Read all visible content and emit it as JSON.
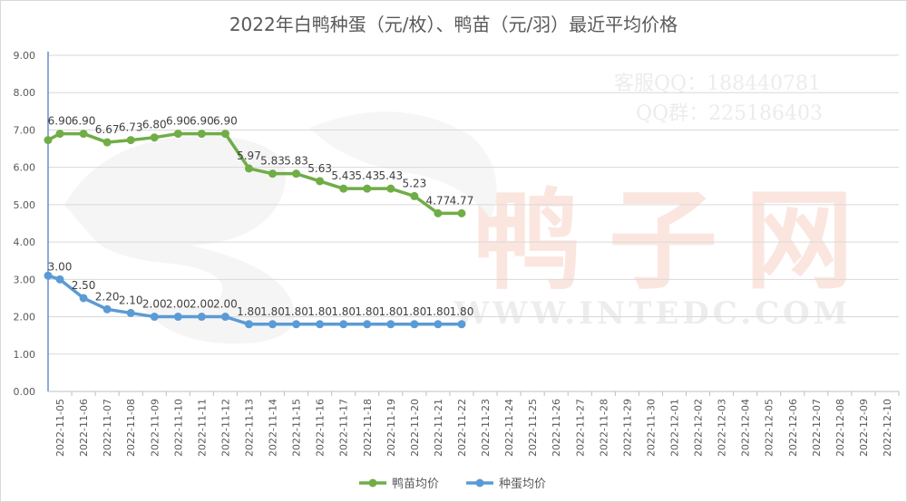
{
  "chart_data": {
    "type": "line",
    "title": "2022年白鸭种蛋（元/枚）、鸭苗（元/羽）最近平均价格",
    "xlabel": "",
    "ylabel": "",
    "ylim": [
      0,
      9
    ],
    "yticks": [
      "0.00",
      "1.00",
      "2.00",
      "3.00",
      "4.00",
      "5.00",
      "6.00",
      "7.00",
      "8.00",
      "9.00"
    ],
    "categories": [
      "2022-11-05",
      "2022-11-06",
      "2022-11-07",
      "2022-11-08",
      "2022-11-09",
      "2022-11-10",
      "2022-11-11",
      "2022-11-12",
      "2022-11-13",
      "2022-11-14",
      "2022-11-15",
      "2022-11-16",
      "2022-11-17",
      "2022-11-18",
      "2022-11-19",
      "2022-11-20",
      "2022-11-21",
      "2022-11-22",
      "2022-11-23",
      "2022-11-24",
      "2022-11-25",
      "2022-11-26",
      "2022-11-27",
      "2022-11-28",
      "2022-11-29",
      "2022-11-30",
      "2022-12-01",
      "2022-12-02",
      "2022-12-03",
      "2022-12-04",
      "2022-12-05",
      "2022-12-06",
      "2022-12-07",
      "2022-12-08",
      "2022-12-09",
      "2022-12-10"
    ],
    "legend_position": "bottom",
    "grid": true,
    "series": [
      {
        "name": "鸭苗均价",
        "color": "#70ad47",
        "x": [
          "2022-11-04",
          "2022-11-05",
          "2022-11-06",
          "2022-11-07",
          "2022-11-08",
          "2022-11-09",
          "2022-11-10",
          "2022-11-11",
          "2022-11-12",
          "2022-11-13",
          "2022-11-14",
          "2022-11-15",
          "2022-11-16",
          "2022-11-17",
          "2022-11-18",
          "2022-11-19",
          "2022-11-20",
          "2022-11-21",
          "2022-11-22"
        ],
        "values": [
          6.73,
          6.9,
          6.9,
          6.67,
          6.73,
          6.8,
          6.9,
          6.9,
          6.9,
          5.97,
          5.83,
          5.83,
          5.63,
          5.43,
          5.43,
          5.43,
          5.23,
          4.77,
          4.77
        ],
        "labels": [
          "",
          "6.90",
          "6.90",
          "6.67",
          "6.73",
          "6.80",
          "6.90",
          "6.90",
          "6.90",
          "5.97",
          "5.83",
          "5.83",
          "5.63",
          "5.43",
          "5.43",
          "5.43",
          "5.23",
          "4.77",
          "4.77"
        ]
      },
      {
        "name": "种蛋均价",
        "color": "#5b9bd5",
        "x": [
          "2022-11-04",
          "2022-11-05",
          "2022-11-06",
          "2022-11-07",
          "2022-11-08",
          "2022-11-09",
          "2022-11-10",
          "2022-11-11",
          "2022-11-12",
          "2022-11-13",
          "2022-11-14",
          "2022-11-15",
          "2022-11-16",
          "2022-11-17",
          "2022-11-18",
          "2022-11-19",
          "2022-11-20",
          "2022-11-21",
          "2022-11-22"
        ],
        "values": [
          3.1,
          3.0,
          2.5,
          2.2,
          2.1,
          2.0,
          2.0,
          2.0,
          2.0,
          1.8,
          1.8,
          1.8,
          1.8,
          1.8,
          1.8,
          1.8,
          1.8,
          1.8,
          1.8
        ],
        "labels": [
          "",
          "3.00",
          "2.50",
          "2.20",
          "2.10",
          "2.00",
          "2.00",
          "2.00",
          "2.00",
          "1.80",
          "1.80",
          "1.80",
          "1.80",
          "1.80",
          "1.80",
          "1.80",
          "1.80",
          "1.80",
          "1.80"
        ]
      }
    ]
  },
  "watermark": {
    "qq_service": "客服QQ：188440781",
    "qq_group": "QQ群：225186403",
    "brand": "鸭子网",
    "site": "WWW.INTEDC.COM"
  }
}
